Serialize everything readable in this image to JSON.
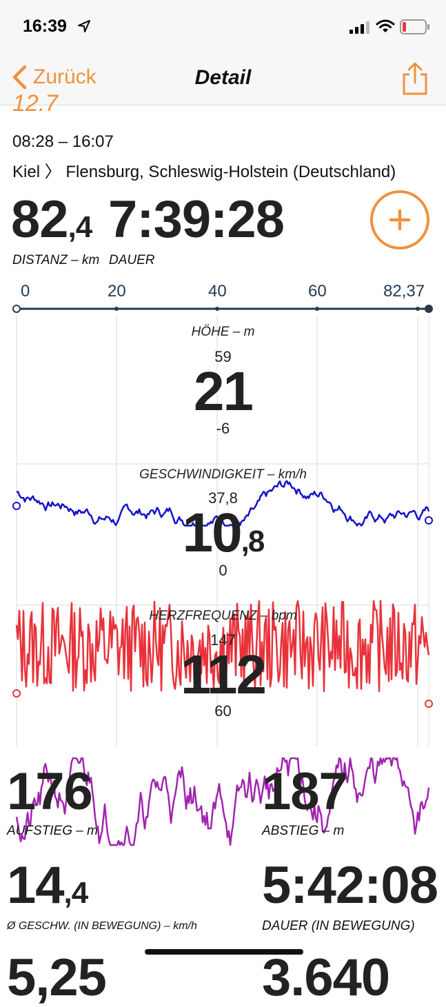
{
  "status": {
    "time": "16:39"
  },
  "nav": {
    "back_label": "Zurück",
    "title": "Detail"
  },
  "header": {
    "title_partial": "12.7",
    "timespan": "08:28 – 16:07",
    "route_from": "Kiel",
    "route_sep": "〉",
    "route_to": "Flensburg, Schleswig-Holstein (Deutschland)"
  },
  "summary": {
    "distance_int": "82",
    "distance_frac": ",4",
    "distance_label": "DISTANZ – km",
    "duration": "7:39:28",
    "duration_label": "DAUER"
  },
  "distance_axis": {
    "ticks": [
      "0",
      "20",
      "40",
      "60",
      "82,37"
    ]
  },
  "charts": {
    "elevation": {
      "label": "HÖHE – m",
      "max": "59",
      "current": "21",
      "min": "-6",
      "color": "#1313c8"
    },
    "speed": {
      "label": "GESCHWINDIGKEIT – km/h",
      "max": "37,8",
      "current_int": "10",
      "current_frac": ",8",
      "min": "0",
      "color": "#e8323a"
    },
    "heart": {
      "label": "HERZFREQUENZ – bpm",
      "max": "147",
      "current": "112",
      "min": "60",
      "color": "#a024b0"
    }
  },
  "stats": {
    "ascent": "176",
    "ascent_label": "AUFSTIEG – m",
    "descent": "187",
    "descent_label": "ABSTIEG – m",
    "avg_speed_int": "14",
    "avg_speed_frac": ",4",
    "avg_speed_label": "Ø GESCHW. (IN BEWEGUNG) – km/h",
    "moving_duration": "5:42:08",
    "moving_duration_label": "DAUER (IN BEWEGUNG)",
    "next_left": "5,25",
    "next_right": "3.640"
  },
  "colors": {
    "accent": "#f0913d",
    "axis": "#2a3a4a"
  }
}
